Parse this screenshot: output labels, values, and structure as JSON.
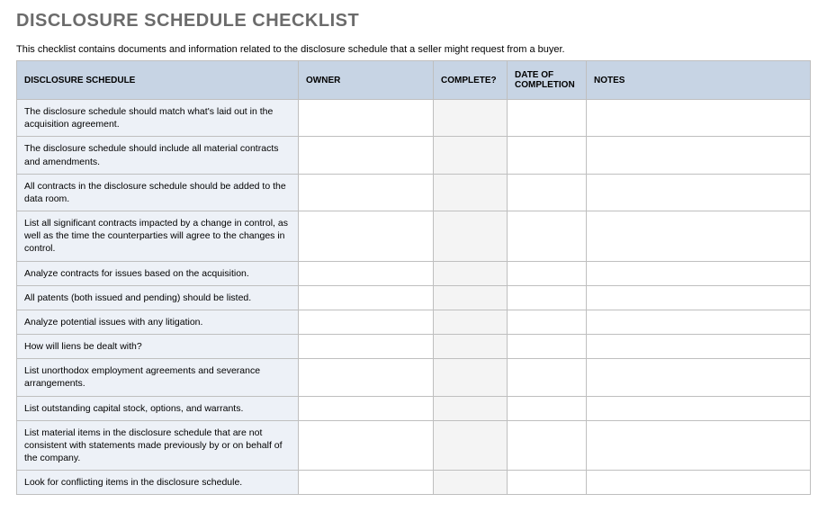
{
  "title": "DISCLOSURE SCHEDULE CHECKLIST",
  "subtitle": "This checklist contains documents and information related to the disclosure schedule that a seller might request from a buyer.",
  "table": {
    "type": "table",
    "header_bg": "#c7d4e4",
    "desc_bg": "#edf1f7",
    "alt_bg": "#f4f4f4",
    "border_color": "#bfbfbf",
    "title_color": "#6b6b6b",
    "columns": [
      {
        "label": "DISCLOSURE SCHEDULE",
        "key": "desc"
      },
      {
        "label": "OWNER",
        "key": "owner"
      },
      {
        "label": "COMPLETE?",
        "key": "complete"
      },
      {
        "label": "DATE OF COMPLETION",
        "key": "date"
      },
      {
        "label": "NOTES",
        "key": "notes"
      }
    ],
    "rows": [
      {
        "desc": "The disclosure schedule should match what's laid out in the acquisition agreement.",
        "owner": "",
        "complete": "",
        "date": "",
        "notes": ""
      },
      {
        "desc": "The disclosure schedule should include all material contracts and amendments.",
        "owner": "",
        "complete": "",
        "date": "",
        "notes": ""
      },
      {
        "desc": "All contracts in the disclosure schedule should be added to the data room.",
        "owner": "",
        "complete": "",
        "date": "",
        "notes": ""
      },
      {
        "desc": "List all significant contracts impacted by a change in control, as well as the time the counterparties will agree to the changes in control.",
        "owner": "",
        "complete": "",
        "date": "",
        "notes": ""
      },
      {
        "desc": "Analyze contracts for issues based on the acquisition.",
        "owner": "",
        "complete": "",
        "date": "",
        "notes": ""
      },
      {
        "desc": "All patents (both issued and pending) should be listed.",
        "owner": "",
        "complete": "",
        "date": "",
        "notes": ""
      },
      {
        "desc": "Analyze potential issues with any litigation.",
        "owner": "",
        "complete": "",
        "date": "",
        "notes": ""
      },
      {
        "desc": "How will liens be dealt with?",
        "owner": "",
        "complete": "",
        "date": "",
        "notes": ""
      },
      {
        "desc": "List unorthodox employment agreements and severance arrangements.",
        "owner": "",
        "complete": "",
        "date": "",
        "notes": ""
      },
      {
        "desc": "List outstanding capital stock, options, and warrants.",
        "owner": "",
        "complete": "",
        "date": "",
        "notes": ""
      },
      {
        "desc": "List material items in the disclosure schedule that are not consistent with statements made previously by or on behalf of the company.",
        "owner": "",
        "complete": "",
        "date": "",
        "notes": ""
      },
      {
        "desc": "Look for conflicting items in the disclosure schedule.",
        "owner": "",
        "complete": "",
        "date": "",
        "notes": ""
      }
    ]
  }
}
